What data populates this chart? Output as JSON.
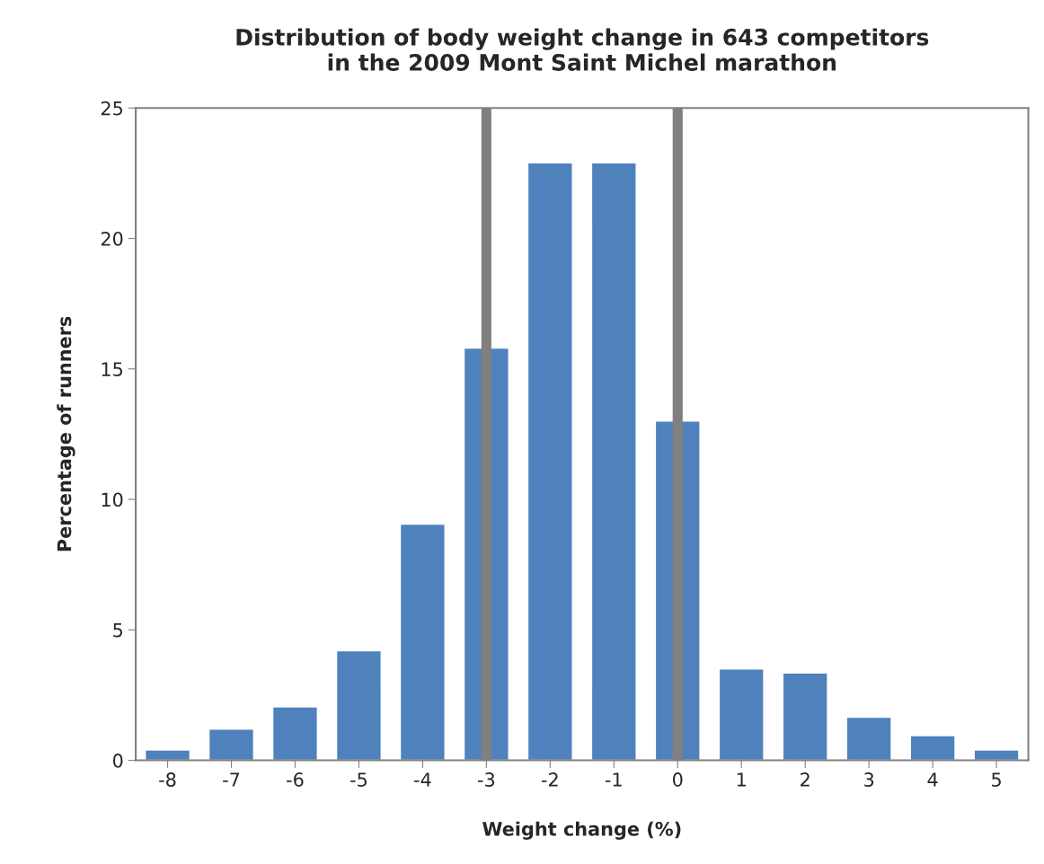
{
  "chart_data": {
    "type": "bar",
    "title": "Distribution of body weight change in 643 competitors\nin the 2009 Mont Saint Michel marathon",
    "xlabel": "Weight change (%)",
    "ylabel": "Percentage of runners",
    "x": [
      -8,
      -7,
      -6,
      -5,
      -4,
      -3,
      -2,
      -1,
      0,
      1,
      2,
      3,
      4,
      5
    ],
    "values": [
      0.4,
      1.2,
      2.05,
      4.2,
      9.05,
      15.8,
      22.9,
      22.9,
      13.0,
      3.5,
      3.35,
      1.65,
      0.95,
      0.4
    ],
    "color": "#4f81bd",
    "xlim": [
      -8.5,
      5.5
    ],
    "xticks": [
      -8,
      -7,
      -6,
      -5,
      -4,
      -3,
      -2,
      -1,
      0,
      1,
      2,
      3,
      4,
      5
    ],
    "ylim": [
      0,
      25
    ],
    "yticks": [
      0,
      5,
      10,
      15,
      20,
      25
    ],
    "ref_lines": [
      {
        "axis": "x",
        "value": -3,
        "color": "#808080"
      },
      {
        "axis": "x",
        "value": 0,
        "color": "#808080"
      }
    ],
    "grid": false
  }
}
